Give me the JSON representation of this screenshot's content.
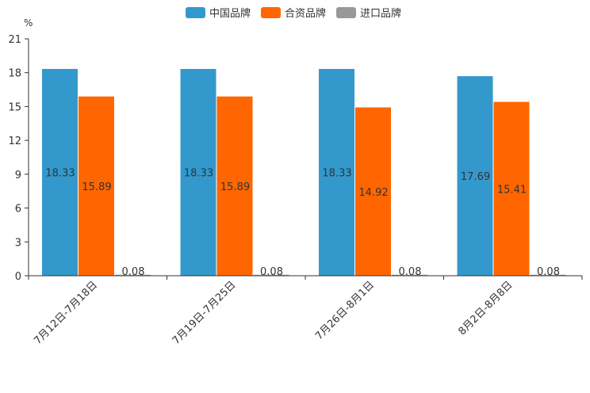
{
  "chart_data": {
    "type": "bar",
    "title": "",
    "xlabel": "",
    "ylabel": "%",
    "ylim": [
      0,
      21
    ],
    "yticks": [
      0,
      3,
      6,
      9,
      12,
      15,
      18,
      21
    ],
    "grid": false,
    "legend_position": "top-center",
    "categories": [
      "7月12日-7月18日",
      "7月19日-7月25日",
      "7月26日-8月1日",
      "8月2日-8月8日"
    ],
    "series": [
      {
        "name": "中国品牌",
        "color": "#3399cc",
        "values": [
          18.33,
          18.33,
          18.33,
          17.69
        ]
      },
      {
        "name": "合资品牌",
        "color": "#ff6600",
        "values": [
          15.89,
          15.89,
          14.92,
          15.41
        ]
      },
      {
        "name": "进口品牌",
        "color": "#999999",
        "values": [
          0.08,
          0.08,
          0.08,
          0.08
        ]
      }
    ]
  }
}
